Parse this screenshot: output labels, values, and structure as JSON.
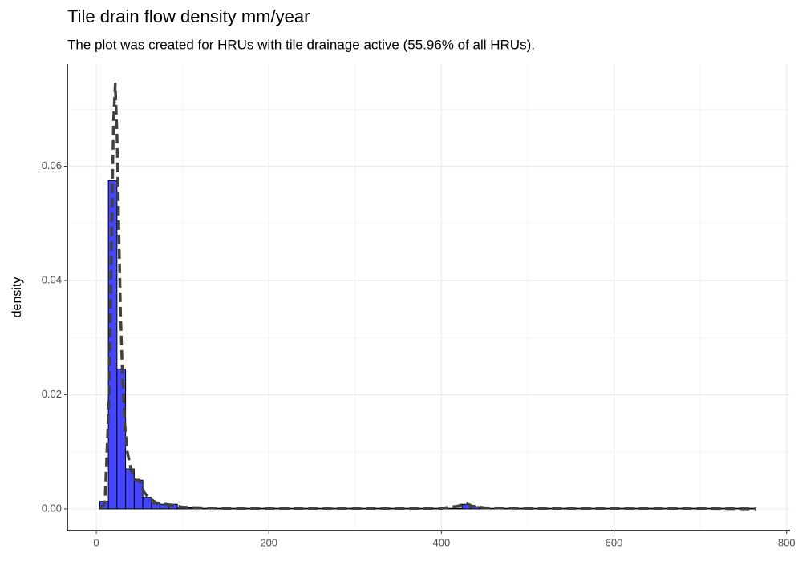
{
  "chart_data": {
    "type": "histogram",
    "title": "Tile drain flow density mm/year",
    "subtitle": "The plot was created for HRUs with tile drainage active (55.96% of all HRUs).",
    "y_label": "density",
    "bins": [
      4,
      14,
      24,
      34,
      44,
      54,
      64,
      74,
      84,
      94,
      104,
      114,
      124,
      134,
      144,
      154,
      164,
      174,
      184,
      194,
      204,
      214,
      224,
      234,
      244,
      254,
      264,
      274,
      284,
      294,
      304,
      314,
      324,
      334,
      344,
      354,
      364,
      374,
      384,
      394,
      404,
      414,
      424,
      434,
      444,
      454,
      464,
      474,
      484,
      494,
      504,
      514,
      524,
      534,
      544,
      554,
      564,
      574,
      584,
      594,
      604,
      614,
      624,
      634,
      644,
      654,
      664,
      674,
      684,
      694,
      704,
      714,
      724,
      734,
      744,
      754,
      764
    ],
    "values": [
      0.0013,
      0.0575,
      0.0245,
      0.007,
      0.005,
      0.002,
      0.001,
      0.0008,
      0.0008,
      0.0003,
      0.0002,
      0.0001,
      0.0001,
      0.0001,
      0.0001,
      0.0001,
      0.0001,
      0.0001,
      0.0001,
      0.0001,
      0.0001,
      0.0001,
      0.0001,
      0.0001,
      0.0001,
      0.0001,
      0.0001,
      0.0001,
      0.0001,
      0.0001,
      0.0001,
      0.0001,
      0.0001,
      0.0001,
      0.0001,
      0.0001,
      0.0001,
      0.0001,
      0.0001,
      0.0001,
      0.0001,
      0.0001,
      0.0008,
      0.0004,
      0.0002,
      0.0001,
      0.0001,
      0.0001,
      0.0001,
      0.0001,
      0.0001,
      0.0001,
      0.0001,
      0.0001,
      0.0001,
      0.0001,
      0.0001,
      0.0001,
      0.0001,
      0.0001,
      0.0001,
      0.0001,
      0.0001,
      0.0001,
      0.0001,
      0.0001,
      0.0001,
      0.0001,
      0.0001,
      0.0001,
      0.0001,
      0.0001,
      0.0001,
      0.0001,
      0.0001,
      0.0001
    ],
    "color": "#4545ff",
    "edge_color": "#000000",
    "density": {
      "x": [
        5,
        10,
        15,
        18,
        20,
        22,
        24,
        26,
        28,
        30,
        33,
        36,
        40,
        45,
        50,
        55,
        60,
        70,
        80,
        90,
        100,
        120,
        150,
        200,
        300,
        400,
        420,
        428,
        435,
        450,
        500,
        600,
        700,
        765
      ],
      "values": [
        0,
        0.001,
        0.02,
        0.05,
        0.068,
        0.0744,
        0.066,
        0.05,
        0.035,
        0.025,
        0.015,
        0.01,
        0.007,
        0.005,
        0.005,
        0.003,
        0.002,
        0.001,
        0.0008,
        0.0006,
        0.0003,
        0.0002,
        0.0001,
        0.0001,
        0.0001,
        0.0001,
        0.0005,
        0.001,
        0.0005,
        0.0002,
        0.0001,
        0.0001,
        0.0001,
        0
      ],
      "color": "#404040"
    },
    "xlim": [
      -33.5,
      804
    ],
    "ylim": [
      -0.0038,
      0.0779
    ],
    "xticks": [
      0,
      200,
      400,
      600,
      800
    ],
    "yticks": [
      {
        "value": 0,
        "label": "0.00"
      },
      {
        "value": 0.02,
        "label": "0.02"
      },
      {
        "value": 0.04,
        "label": "0.04"
      },
      {
        "value": 0.06,
        "label": "0.06"
      }
    ],
    "x_minor_ticks": [
      100,
      300,
      500,
      700
    ],
    "y_minor_ticks": [
      0.01,
      0.03,
      0.05,
      0.07
    ],
    "grid": true
  }
}
